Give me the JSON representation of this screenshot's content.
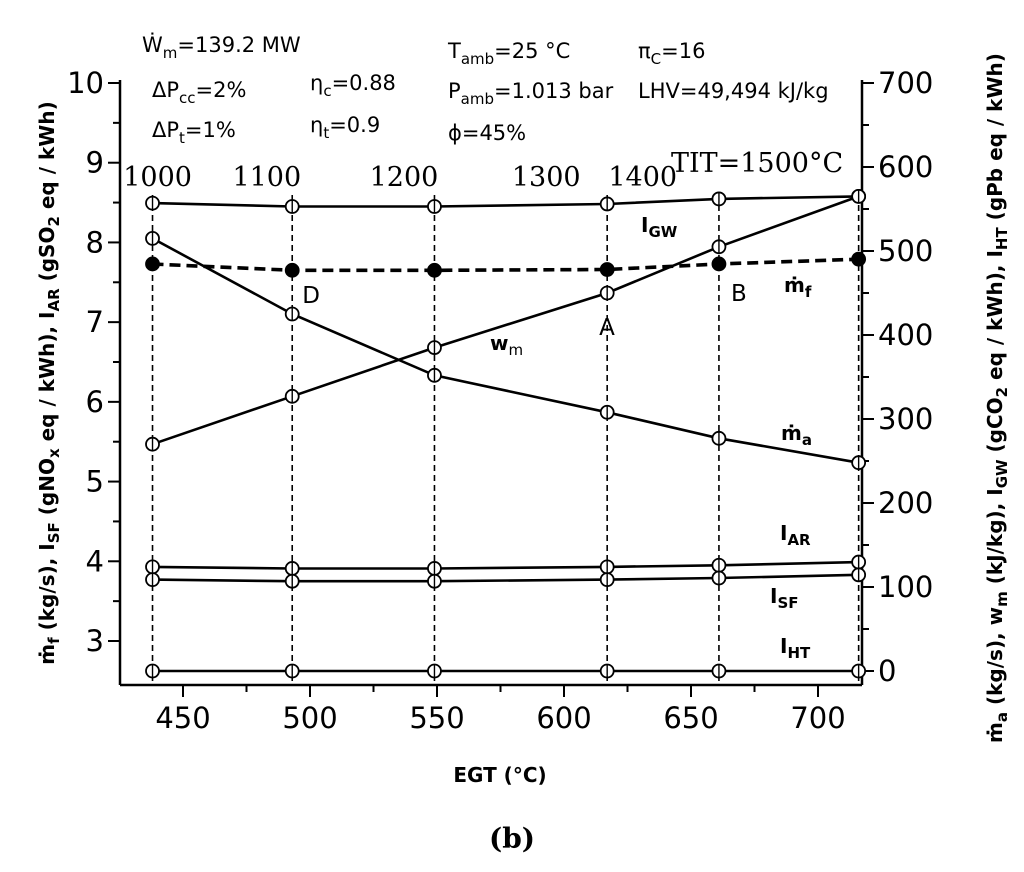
{
  "chart_data": {
    "type": "line",
    "xlabel": "EGT (°C)",
    "xlim": [
      425,
      725
    ],
    "x_ticks": [
      450,
      500,
      550,
      600,
      650,
      700
    ],
    "x_ticks_text": [
      "450",
      "500",
      "550",
      "600",
      "650",
      "700"
    ],
    "ylabel_left": "ṁf (kg/s), ISF (gNOx eq / kWh), IAR (gSO2 eq / kWh)",
    "ylim_left": [
      2.5,
      10
    ],
    "y_ticks_left": [
      3,
      4,
      5,
      6,
      7,
      8,
      9,
      10
    ],
    "y_ticks_left_text": [
      "3",
      "4",
      "5",
      "6",
      "7",
      "8",
      "9",
      "10"
    ],
    "ylabel_right": "ṁa (kg/s), wm (kJ/kg), IGW (gCO2 eq / kWh), IHT (gPb eq / kWh)",
    "ylim_right": [
      -20,
      720
    ],
    "y_ticks_right": [
      0,
      100,
      200,
      300,
      400,
      500,
      600,
      700
    ],
    "y_ticks_right_text": [
      "0",
      "100",
      "200",
      "300",
      "400",
      "500",
      "600",
      "700"
    ],
    "tit_values": [
      1000,
      1100,
      1200,
      1300,
      1400,
      1500
    ],
    "tit_ticks_text": [
      "1000",
      "1100",
      "1200",
      "1300",
      "1400",
      "TIT=1500°C"
    ],
    "x": [
      438,
      493,
      549,
      617,
      661,
      716
    ],
    "series": [
      {
        "name": "IGW",
        "axis": "right",
        "style": "solid-open",
        "values": [
          557,
          553,
          553,
          556,
          562,
          565
        ]
      },
      {
        "name": "ṁf",
        "axis": "left",
        "style": "dashed-filled",
        "values": [
          7.73,
          7.65,
          7.65,
          7.66,
          7.73,
          7.79
        ]
      },
      {
        "name": "wm",
        "axis": "right",
        "style": "solid-open",
        "values": [
          270,
          327,
          385,
          450,
          505,
          565
        ]
      },
      {
        "name": "ṁa",
        "axis": "right",
        "style": "solid-open",
        "values": [
          515,
          425,
          352,
          308,
          277,
          248
        ]
      },
      {
        "name": "IAR",
        "axis": "left",
        "style": "solid-open",
        "values": [
          3.93,
          3.91,
          3.91,
          3.93,
          3.95,
          3.99
        ]
      },
      {
        "name": "ISF",
        "axis": "left",
        "style": "solid-open",
        "values": [
          3.77,
          3.75,
          3.75,
          3.77,
          3.79,
          3.83
        ]
      },
      {
        "name": "IHT",
        "axis": "right",
        "style": "solid-open",
        "values": [
          0,
          0,
          0,
          0,
          0,
          0
        ]
      }
    ],
    "point_labels": [
      {
        "text": "D",
        "x": 493
      },
      {
        "text": "A",
        "x": 617
      },
      {
        "text": "B",
        "x": 661
      }
    ],
    "grid": false,
    "legend": "none"
  },
  "parameters": {
    "wm": "Ẇm=139.2 MW",
    "dpcc": "ΔPcc=2%",
    "dpt": "ΔPt=1%",
    "etac": "ηc=0.88",
    "etat": "ηt=0.9",
    "tamb": "Tamb=25 °C",
    "pamb": "Pamb=1.013 bar",
    "phi": "ϕ=45%",
    "pic": "πC=16",
    "lhv": "LHV=49,494 kJ/kg"
  },
  "panel_label": "(b)"
}
